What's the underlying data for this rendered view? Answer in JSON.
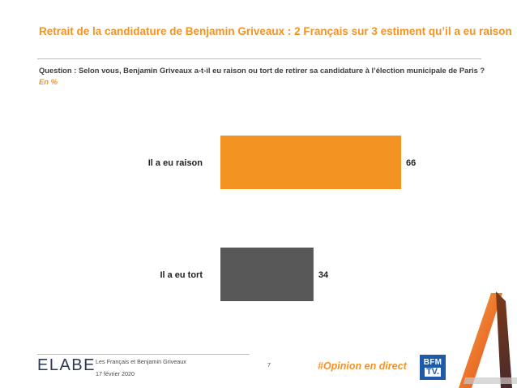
{
  "header": {
    "title": "Retrait de la candidature de Benjamin Griveaux : 2 Français sur 3 estiment qu’il a eu raison",
    "question": "Question : Selon vous, Benjamin Griveaux a-t-il eu raison ou tort de retirer sa candidature à l’élection municipale de Paris ?",
    "unit": "En %"
  },
  "chart_data": {
    "type": "bar",
    "orientation": "horizontal",
    "categories": [
      "Il a eu raison",
      "Il a eu tort"
    ],
    "values": [
      66,
      34
    ],
    "colors": [
      "#f39322",
      "#575757"
    ],
    "xlim": [
      0,
      100
    ],
    "grid": false,
    "legend": "none"
  },
  "footer": {
    "logo": "ELABE",
    "study": "Les Français et Benjamin Griveaux",
    "date": "17 février 2020",
    "page": "7",
    "hashtag": "#Opinion en direct",
    "partner_logo_line1": "BFM",
    "partner_logo_line2": "TV."
  }
}
